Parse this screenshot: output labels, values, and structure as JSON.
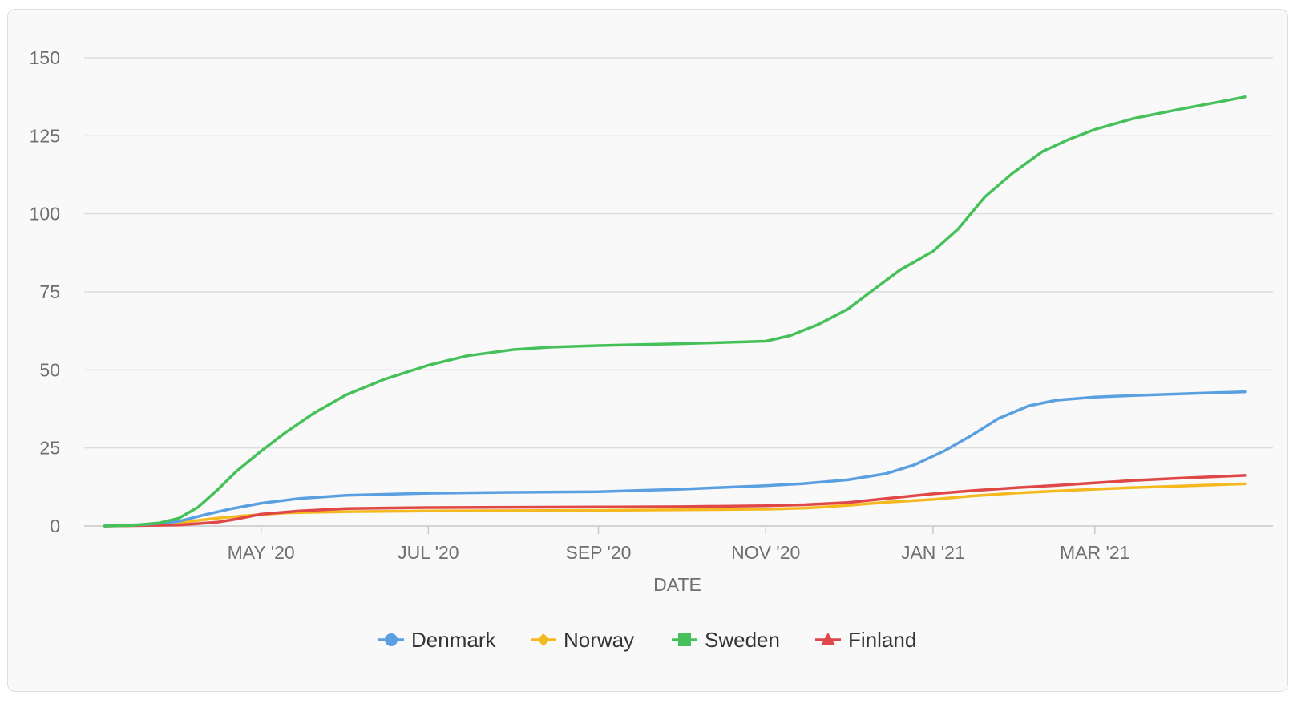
{
  "chart_data": {
    "type": "line",
    "xlabel": "DATE",
    "ylabel": "",
    "ylim": [
      0,
      150
    ],
    "yticks": [
      "0",
      "25",
      "50",
      "75",
      "100",
      "125",
      "150"
    ],
    "xticks": [
      {
        "label": "MAY '20",
        "date": "2020-05-01"
      },
      {
        "label": "JUL '20",
        "date": "2020-07-01"
      },
      {
        "label": "SEP '20",
        "date": "2020-09-01"
      },
      {
        "label": "NOV '20",
        "date": "2020-11-01"
      },
      {
        "label": "JAN '21",
        "date": "2021-01-01"
      },
      {
        "label": "MAR '21",
        "date": "2021-03-01"
      }
    ],
    "xlim": [
      "2020-03-01",
      "2021-04-30"
    ],
    "grid": true,
    "legend": "bottom",
    "series": [
      {
        "name": "Denmark",
        "color": "#5a9fe0",
        "marker": "circle",
        "points": [
          [
            "2020-03-05",
            0
          ],
          [
            "2020-03-20",
            0.5
          ],
          [
            "2020-04-01",
            1.5
          ],
          [
            "2020-04-10",
            3.5
          ],
          [
            "2020-04-20",
            5.5
          ],
          [
            "2020-05-01",
            7.3
          ],
          [
            "2020-05-15",
            8.8
          ],
          [
            "2020-06-01",
            9.8
          ],
          [
            "2020-07-01",
            10.5
          ],
          [
            "2020-08-01",
            10.8
          ],
          [
            "2020-09-01",
            11.0
          ],
          [
            "2020-10-01",
            11.8
          ],
          [
            "2020-10-15",
            12.3
          ],
          [
            "2020-11-01",
            12.9
          ],
          [
            "2020-11-15",
            13.6
          ],
          [
            "2020-12-01",
            14.8
          ],
          [
            "2020-12-15",
            16.8
          ],
          [
            "2020-12-25",
            19.5
          ],
          [
            "2021-01-05",
            24.0
          ],
          [
            "2021-01-15",
            29.0
          ],
          [
            "2021-01-25",
            34.5
          ],
          [
            "2021-02-05",
            38.5
          ],
          [
            "2021-02-15",
            40.3
          ],
          [
            "2021-03-01",
            41.3
          ],
          [
            "2021-03-15",
            41.8
          ],
          [
            "2021-04-01",
            42.3
          ],
          [
            "2021-04-25",
            43.0
          ]
        ]
      },
      {
        "name": "Norway",
        "color": "#f5b920",
        "marker": "diamond",
        "points": [
          [
            "2020-03-05",
            0
          ],
          [
            "2020-03-25",
            0.5
          ],
          [
            "2020-04-05",
            1.5
          ],
          [
            "2020-04-15",
            2.5
          ],
          [
            "2020-04-25",
            3.3
          ],
          [
            "2020-05-10",
            4.2
          ],
          [
            "2020-06-01",
            4.6
          ],
          [
            "2020-07-01",
            4.8
          ],
          [
            "2020-08-01",
            4.9
          ],
          [
            "2020-09-01",
            5.0
          ],
          [
            "2020-10-01",
            5.2
          ],
          [
            "2020-11-01",
            5.4
          ],
          [
            "2020-11-15",
            5.7
          ],
          [
            "2020-12-01",
            6.6
          ],
          [
            "2020-12-15",
            7.6
          ],
          [
            "2021-01-01",
            8.5
          ],
          [
            "2021-01-15",
            9.6
          ],
          [
            "2021-02-01",
            10.6
          ],
          [
            "2021-02-15",
            11.2
          ],
          [
            "2021-03-01",
            11.8
          ],
          [
            "2021-03-15",
            12.3
          ],
          [
            "2021-04-01",
            12.8
          ],
          [
            "2021-04-25",
            13.5
          ]
        ]
      },
      {
        "name": "Sweden",
        "color": "#46c15a",
        "marker": "square",
        "points": [
          [
            "2020-03-05",
            0
          ],
          [
            "2020-03-15",
            0.2
          ],
          [
            "2020-03-25",
            1.0
          ],
          [
            "2020-04-01",
            2.5
          ],
          [
            "2020-04-08",
            6.0
          ],
          [
            "2020-04-15",
            11.5
          ],
          [
            "2020-04-22",
            17.5
          ],
          [
            "2020-05-01",
            24.0
          ],
          [
            "2020-05-10",
            30.0
          ],
          [
            "2020-05-20",
            36.0
          ],
          [
            "2020-06-01",
            42.0
          ],
          [
            "2020-06-15",
            47.0
          ],
          [
            "2020-07-01",
            51.5
          ],
          [
            "2020-07-15",
            54.5
          ],
          [
            "2020-08-01",
            56.5
          ],
          [
            "2020-08-15",
            57.3
          ],
          [
            "2020-09-01",
            57.8
          ],
          [
            "2020-10-01",
            58.4
          ],
          [
            "2020-10-25",
            59.0
          ],
          [
            "2020-11-01",
            59.2
          ],
          [
            "2020-11-10",
            61.0
          ],
          [
            "2020-11-20",
            64.5
          ],
          [
            "2020-12-01",
            69.5
          ],
          [
            "2020-12-10",
            75.5
          ],
          [
            "2020-12-20",
            82.0
          ],
          [
            "2021-01-01",
            88.0
          ],
          [
            "2021-01-10",
            95.0
          ],
          [
            "2021-01-20",
            105.5
          ],
          [
            "2021-01-30",
            113.0
          ],
          [
            "2021-02-10",
            120.0
          ],
          [
            "2021-02-20",
            124.0
          ],
          [
            "2021-03-01",
            127.0
          ],
          [
            "2021-03-15",
            130.5
          ],
          [
            "2021-04-01",
            133.5
          ],
          [
            "2021-04-15",
            135.8
          ],
          [
            "2021-04-25",
            137.5
          ]
        ]
      },
      {
        "name": "Finland",
        "color": "#e04848",
        "marker": "triangle",
        "points": [
          [
            "2020-03-05",
            0
          ],
          [
            "2020-04-01",
            0.3
          ],
          [
            "2020-04-15",
            1.2
          ],
          [
            "2020-04-22",
            2.2
          ],
          [
            "2020-05-01",
            3.8
          ],
          [
            "2020-05-15",
            4.8
          ],
          [
            "2020-06-01",
            5.6
          ],
          [
            "2020-07-01",
            5.9
          ],
          [
            "2020-08-01",
            6.0
          ],
          [
            "2020-09-01",
            6.1
          ],
          [
            "2020-10-01",
            6.2
          ],
          [
            "2020-11-01",
            6.5
          ],
          [
            "2020-11-15",
            6.8
          ],
          [
            "2020-12-01",
            7.5
          ],
          [
            "2020-12-15",
            8.8
          ],
          [
            "2021-01-01",
            10.3
          ],
          [
            "2021-01-15",
            11.3
          ],
          [
            "2021-02-01",
            12.3
          ],
          [
            "2021-02-15",
            13.0
          ],
          [
            "2021-03-01",
            13.8
          ],
          [
            "2021-03-15",
            14.6
          ],
          [
            "2021-04-01",
            15.3
          ],
          [
            "2021-04-25",
            16.2
          ]
        ]
      }
    ]
  }
}
